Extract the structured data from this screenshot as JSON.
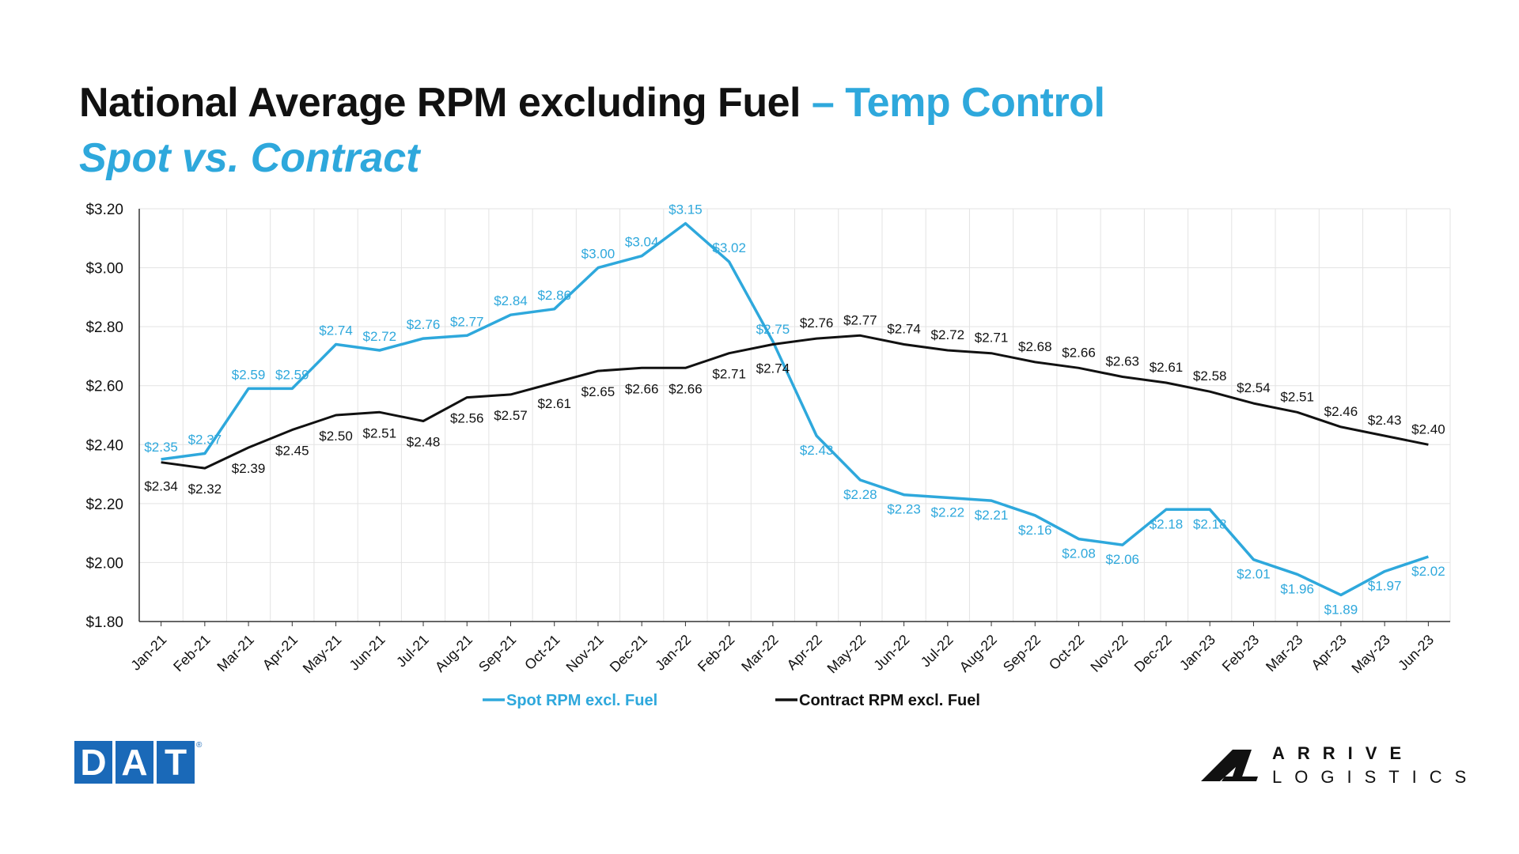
{
  "header": {
    "title_main": "National Average RPM excluding Fuel",
    "title_accent": "– Temp Control",
    "subtitle": "Spot vs. Contract"
  },
  "colors": {
    "spot": "#2ea8dc",
    "contract": "#111111",
    "grid": "#e3e3e3",
    "axis": "#333333"
  },
  "logos": {
    "dat_letters": [
      "D",
      "A",
      "T"
    ],
    "dat_mark": "®",
    "arrive_line1": "ARRIVE",
    "arrive_line2": "LOGISTICS"
  },
  "chart_data": {
    "type": "line",
    "categories": [
      "Jan-21",
      "Feb-21",
      "Mar-21",
      "Apr-21",
      "May-21",
      "Jun-21",
      "Jul-21",
      "Aug-21",
      "Sep-21",
      "Oct-21",
      "Nov-21",
      "Dec-21",
      "Jan-22",
      "Feb-22",
      "Mar-22",
      "Apr-22",
      "May-22",
      "Jun-22",
      "Jul-22",
      "Aug-22",
      "Sep-22",
      "Oct-22",
      "Nov-22",
      "Dec-22",
      "Jan-23",
      "Feb-23",
      "Mar-23",
      "Apr-23",
      "May-23",
      "Jun-23"
    ],
    "series": [
      {
        "name": "Spot RPM excl. Fuel",
        "color": "#2ea8dc",
        "values": [
          2.35,
          2.37,
          2.59,
          2.59,
          2.74,
          2.72,
          2.76,
          2.77,
          2.84,
          2.86,
          3.0,
          3.04,
          3.15,
          3.02,
          2.75,
          2.43,
          2.28,
          2.23,
          2.22,
          2.21,
          2.16,
          2.08,
          2.06,
          2.18,
          2.18,
          2.01,
          1.96,
          1.89,
          1.97,
          2.02
        ]
      },
      {
        "name": "Contract RPM excl. Fuel",
        "color": "#111111",
        "values": [
          2.34,
          2.32,
          2.39,
          2.45,
          2.5,
          2.51,
          2.48,
          2.56,
          2.57,
          2.61,
          2.65,
          2.66,
          2.66,
          2.71,
          2.74,
          2.76,
          2.77,
          2.74,
          2.72,
          2.71,
          2.68,
          2.66,
          2.63,
          2.61,
          2.58,
          2.54,
          2.51,
          2.46,
          2.43,
          2.4
        ]
      }
    ],
    "ylim": [
      1.8,
      3.2
    ],
    "yticks": [
      "$1.80",
      "$2.00",
      "$2.20",
      "$2.40",
      "$2.60",
      "$2.80",
      "$3.00",
      "$3.20"
    ],
    "ytick_values": [
      1.8,
      2.0,
      2.2,
      2.4,
      2.6,
      2.8,
      3.0,
      3.2
    ],
    "xlabel": "",
    "ylabel": "",
    "grid": true,
    "legend_position": "bottom",
    "data_labels": true
  }
}
